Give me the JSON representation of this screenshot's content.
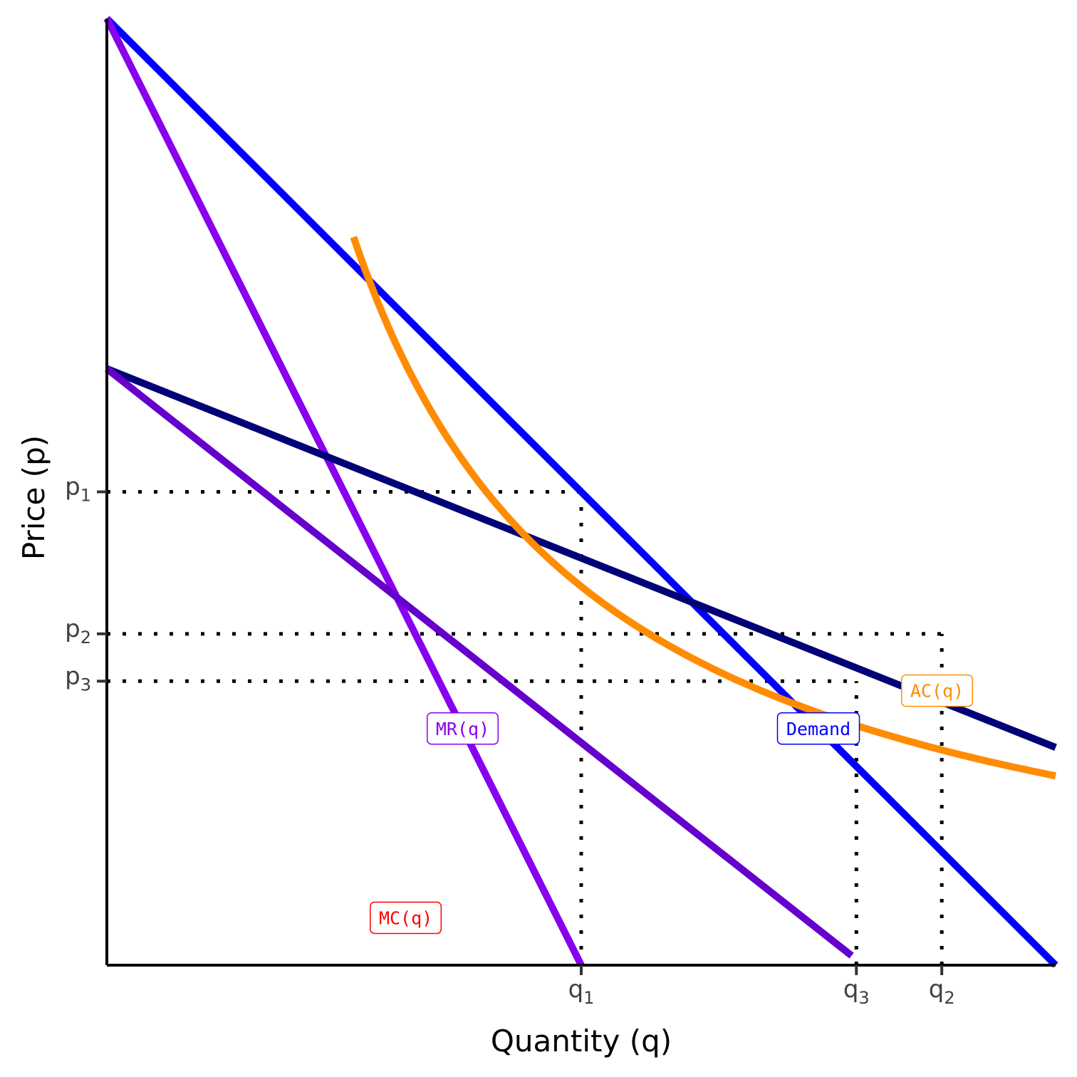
{
  "chart_data": {
    "type": "line",
    "xlabel": "Quantity (q)",
    "ylabel": "Price (p)",
    "xlim": [
      0,
      10
    ],
    "ylim": [
      0,
      10
    ],
    "grid": false,
    "legend": "none",
    "series": [
      {
        "key": "demand",
        "color": "#0000ff",
        "points": [
          [
            0,
            10
          ],
          [
            10,
            0
          ]
        ]
      },
      {
        "key": "mr",
        "color": "#8800ee",
        "points": [
          [
            0,
            10
          ],
          [
            5,
            0
          ]
        ]
      },
      {
        "key": "line_a",
        "color": "#000077",
        "points": [
          [
            0,
            6.3
          ],
          [
            10,
            2.3
          ]
        ]
      },
      {
        "key": "line_b",
        "color": "#6600cc",
        "points": [
          [
            0,
            6.3
          ],
          [
            7.85,
            0.1
          ]
        ]
      },
      {
        "key": "ac",
        "color": "#ff8c00",
        "curve": "ac",
        "x_range": [
          2.6,
          10
        ]
      },
      {
        "key": "mc",
        "color": "#ff0000",
        "points": [
          [
            0,
            0
          ],
          [
            10,
            0
          ]
        ]
      }
    ],
    "ac_curve": {
      "fixed_cost": 25,
      "marginal_cost": 0
    },
    "curve_labels": [
      {
        "series": "mr",
        "text": "MR(q)",
        "color": "#8800ee",
        "x": 3.75,
        "y": 2.5
      },
      {
        "series": "demand",
        "text": "Demand",
        "color": "#0000ff",
        "x": 7.5,
        "y": 2.5
      },
      {
        "series": "ac",
        "text": "AC(q)",
        "color": "#ff8c00",
        "x": 8.75,
        "y": 2.9
      },
      {
        "series": "mc",
        "text": "MC(q)",
        "color": "#ff0000",
        "x": 3.15,
        "y": 0.5
      }
    ],
    "x_ticks": [
      {
        "base": "q",
        "sub": "1",
        "value": 5
      },
      {
        "base": "q",
        "sub": "3",
        "value": 7.9
      },
      {
        "base": "q",
        "sub": "2",
        "value": 8.8
      }
    ],
    "y_ticks": [
      {
        "base": "p",
        "sub": "1",
        "value": 5
      },
      {
        "base": "p",
        "sub": "2",
        "value": 3.5
      },
      {
        "base": "p",
        "sub": "3",
        "value": 3.0
      }
    ],
    "guides": [
      {
        "orient": "h",
        "y": 5,
        "x_end": 5
      },
      {
        "orient": "v",
        "x": 5,
        "y_end": 5
      },
      {
        "orient": "h",
        "y": 3.5,
        "x_end": 8.8
      },
      {
        "orient": "v",
        "x": 8.8,
        "y_end": 3.5
      },
      {
        "orient": "h",
        "y": 3.0,
        "x_end": 7.9
      },
      {
        "orient": "v",
        "x": 7.9,
        "y_end": 3.0
      }
    ]
  }
}
